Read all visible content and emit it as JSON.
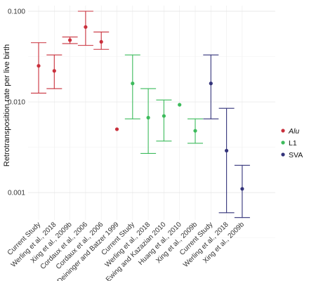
{
  "chart_data": {
    "type": "errorbar",
    "ylabel": "Retrotransposition rate per live birth",
    "xlabel": "",
    "yscale": "log",
    "ylim": [
      0.0005,
      0.1
    ],
    "yticks": [
      {
        "value": 0.001,
        "label": "0.001"
      },
      {
        "value": 0.01,
        "label": "0.010"
      },
      {
        "value": 0.1,
        "label": "0.100"
      }
    ],
    "grid": true,
    "legend_position": "right",
    "categories": [
      "Current Study",
      "Werling et al., 2018",
      "Xing et al., 2009b",
      "Cordaux et al., 2006",
      "Cordaux et al., 2006",
      "Deininger and Batzer 1999",
      "Current Study",
      "Werling et al., 2018",
      "Ewing and Kazazian 2010",
      "Huang et al., 2010",
      "Xing et al., 2009b",
      "Current Study",
      "Werling et al., 2018",
      "Xing et al., 2009b"
    ],
    "series": [
      {
        "name": "Alu",
        "italic": true,
        "color": "#c9303c",
        "points": [
          {
            "index": 0,
            "value": 0.025,
            "low": 0.0125,
            "high": 0.045
          },
          {
            "index": 1,
            "value": 0.022,
            "low": 0.014,
            "high": 0.033
          },
          {
            "index": 2,
            "value": 0.048,
            "low": 0.044,
            "high": 0.052
          },
          {
            "index": 3,
            "value": 0.067,
            "low": 0.042,
            "high": 0.1
          },
          {
            "index": 4,
            "value": 0.046,
            "low": 0.038,
            "high": 0.059
          },
          {
            "index": 5,
            "value": 0.005
          }
        ]
      },
      {
        "name": "L1",
        "italic": false,
        "color": "#3dbb5c",
        "points": [
          {
            "index": 6,
            "value": 0.016,
            "low": 0.0065,
            "high": 0.033
          },
          {
            "index": 7,
            "value": 0.0067,
            "low": 0.0027,
            "high": 0.014
          },
          {
            "index": 8,
            "value": 0.007,
            "low": 0.0037,
            "high": 0.0105
          },
          {
            "index": 9,
            "value": 0.0093
          },
          {
            "index": 10,
            "value": 0.0048,
            "low": 0.0035,
            "high": 0.0065
          }
        ]
      },
      {
        "name": "SVA",
        "italic": false,
        "color": "#33337a",
        "points": [
          {
            "index": 11,
            "value": 0.016,
            "low": 0.0065,
            "high": 0.033
          },
          {
            "index": 12,
            "value": 0.0029,
            "low": 0.0006,
            "high": 0.0085
          },
          {
            "index": 13,
            "value": 0.0011,
            "low": 0.00053,
            "high": 0.002
          }
        ]
      }
    ]
  }
}
